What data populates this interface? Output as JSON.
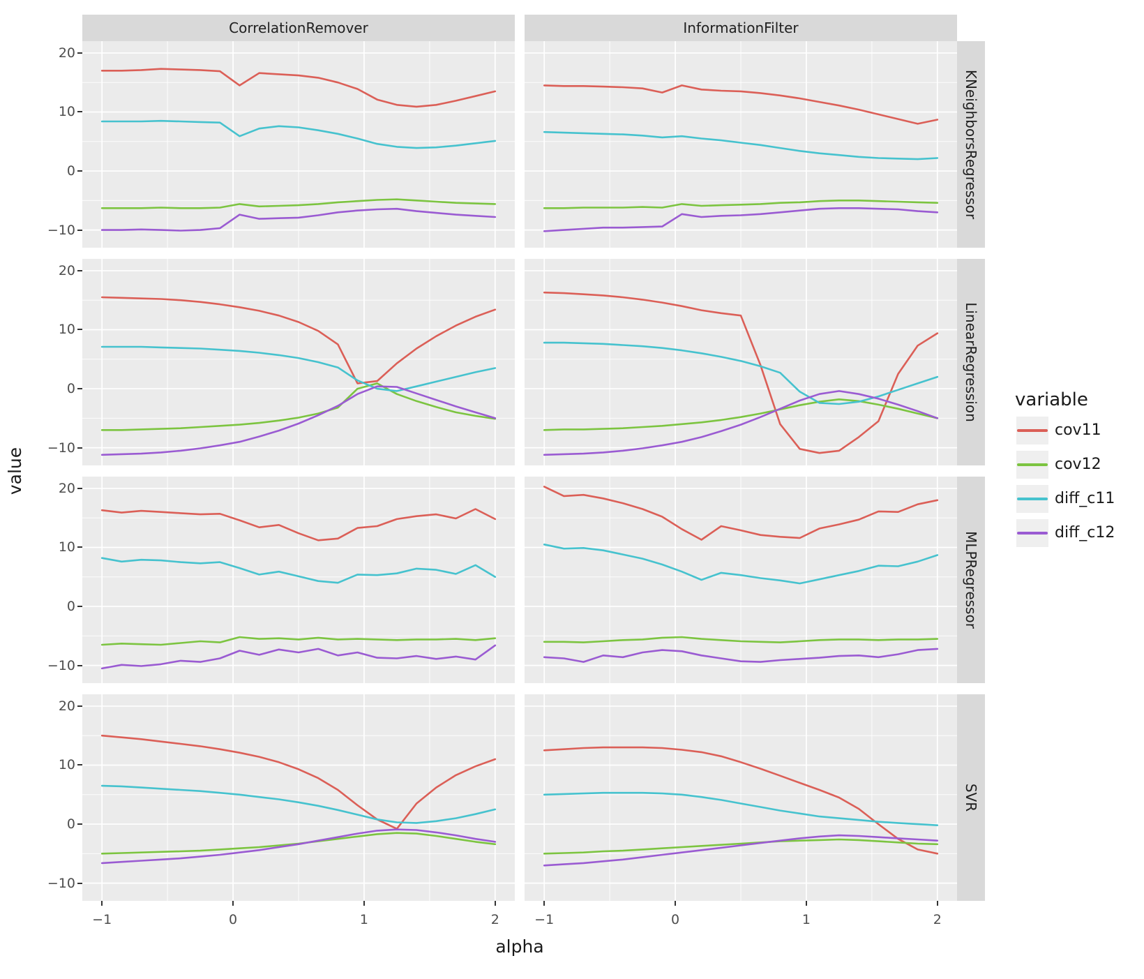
{
  "figure": {
    "background": "#FFFFFF",
    "panel_background": "#EBEBEB",
    "strip_background": "#D9D9D9",
    "grid_color": "#FFFFFF",
    "tick_color": "#333333",
    "tick_label_color": "#4D4D4D",
    "text_color": "#1A1A1A"
  },
  "chart_data": {
    "type": "line",
    "xlabel": "alpha",
    "ylabel": "value",
    "col_facets": [
      "CorrelationRemover",
      "InformationFilter"
    ],
    "row_facets": [
      "KNeighborsRegressor",
      "LinearRegression",
      "MLPRegressor",
      "SVR"
    ],
    "x_ticks": [
      "−1",
      "0",
      "1",
      "2"
    ],
    "x_tick_values": [
      -1,
      0,
      1,
      2
    ],
    "y_ticks": [
      "20",
      "10",
      "0",
      "−10"
    ],
    "y_tick_values": [
      20,
      10,
      0,
      -10
    ],
    "x_domain": [
      -1.15,
      2.15
    ],
    "y_domain": [
      -13,
      22
    ],
    "x_minor": [
      -0.5,
      0.5,
      1.5
    ],
    "y_minor": [
      15,
      5,
      -5
    ],
    "grid": true,
    "legend": {
      "title": "variable",
      "position": "right",
      "entries": [
        "cov11",
        "cov12",
        "diff_c11",
        "diff_c12"
      ]
    },
    "colors": {
      "cov11": "#DB5F57",
      "cov12": "#7CC440",
      "diff_c11": "#46C2CE",
      "diff_c12": "#9A5BD2"
    },
    "x": [
      -1.0,
      -0.85,
      -0.7,
      -0.55,
      -0.4,
      -0.25,
      -0.1,
      0.05,
      0.2,
      0.35,
      0.5,
      0.65,
      0.8,
      0.95,
      1.1,
      1.25,
      1.4,
      1.55,
      1.7,
      1.85,
      2.0
    ],
    "panels": [
      {
        "row": "KNeighborsRegressor",
        "col": "CorrelationRemover",
        "series": {
          "cov11": [
            17.0,
            17.0,
            17.1,
            17.3,
            17.2,
            17.1,
            16.9,
            14.5,
            16.6,
            16.4,
            16.2,
            15.8,
            15.0,
            13.9,
            12.1,
            11.2,
            10.9,
            11.2,
            11.9,
            12.7,
            13.5
          ],
          "cov12": [
            -6.3,
            -6.3,
            -6.3,
            -6.2,
            -6.3,
            -6.3,
            -6.2,
            -5.6,
            -6.0,
            -5.9,
            -5.8,
            -5.6,
            -5.3,
            -5.1,
            -4.9,
            -4.8,
            -5.0,
            -5.2,
            -5.4,
            -5.5,
            -5.6
          ],
          "diff_c11": [
            8.4,
            8.4,
            8.4,
            8.5,
            8.4,
            8.3,
            8.2,
            5.9,
            7.2,
            7.6,
            7.4,
            6.9,
            6.3,
            5.5,
            4.6,
            4.1,
            3.9,
            4.0,
            4.3,
            4.7,
            5.1
          ],
          "diff_c12": [
            -10.0,
            -10.0,
            -9.9,
            -10.0,
            -10.1,
            -10.0,
            -9.7,
            -7.4,
            -8.1,
            -8.0,
            -7.9,
            -7.5,
            -7.0,
            -6.7,
            -6.5,
            -6.4,
            -6.8,
            -7.1,
            -7.4,
            -7.6,
            -7.8
          ]
        }
      },
      {
        "row": "KNeighborsRegressor",
        "col": "InformationFilter",
        "series": {
          "cov11": [
            14.5,
            14.4,
            14.4,
            14.3,
            14.2,
            14.0,
            13.3,
            14.5,
            13.8,
            13.6,
            13.5,
            13.2,
            12.8,
            12.3,
            11.7,
            11.1,
            10.4,
            9.6,
            8.8,
            8.0,
            8.7
          ],
          "cov12": [
            -6.3,
            -6.3,
            -6.2,
            -6.2,
            -6.2,
            -6.1,
            -6.2,
            -5.6,
            -5.9,
            -5.8,
            -5.7,
            -5.6,
            -5.4,
            -5.3,
            -5.1,
            -5.0,
            -5.0,
            -5.1,
            -5.2,
            -5.3,
            -5.4
          ],
          "diff_c11": [
            6.6,
            6.5,
            6.4,
            6.3,
            6.2,
            6.0,
            5.7,
            5.9,
            5.5,
            5.2,
            4.8,
            4.4,
            3.9,
            3.4,
            3.0,
            2.7,
            2.4,
            2.2,
            2.1,
            2.0,
            2.2
          ],
          "diff_c12": [
            -10.2,
            -10.0,
            -9.8,
            -9.6,
            -9.6,
            -9.5,
            -9.4,
            -7.3,
            -7.8,
            -7.6,
            -7.5,
            -7.3,
            -7.0,
            -6.7,
            -6.4,
            -6.3,
            -6.3,
            -6.4,
            -6.5,
            -6.8,
            -7.0
          ]
        }
      },
      {
        "row": "LinearRegression",
        "col": "CorrelationRemover",
        "series": {
          "cov11": [
            15.5,
            15.4,
            15.3,
            15.2,
            15.0,
            14.7,
            14.3,
            13.8,
            13.2,
            12.4,
            11.3,
            9.8,
            7.5,
            0.9,
            1.3,
            4.3,
            6.8,
            8.9,
            10.7,
            12.2,
            13.4
          ],
          "cov12": [
            -7.0,
            -7.0,
            -6.9,
            -6.8,
            -6.7,
            -6.5,
            -6.3,
            -6.1,
            -5.8,
            -5.4,
            -4.9,
            -4.2,
            -3.2,
            0.0,
            0.9,
            -0.9,
            -2.1,
            -3.1,
            -4.0,
            -4.6,
            -5.1
          ],
          "diff_c11": [
            7.1,
            7.1,
            7.1,
            7.0,
            6.9,
            6.8,
            6.6,
            6.4,
            6.1,
            5.7,
            5.2,
            4.5,
            3.6,
            1.4,
            0.0,
            -0.4,
            0.4,
            1.2,
            2.0,
            2.8,
            3.5
          ],
          "diff_c12": [
            -11.2,
            -11.1,
            -11.0,
            -10.8,
            -10.5,
            -10.1,
            -9.6,
            -9.0,
            -8.1,
            -7.1,
            -5.9,
            -4.5,
            -2.9,
            -0.9,
            0.4,
            0.3,
            -0.8,
            -1.9,
            -3.0,
            -4.0,
            -5.0
          ]
        }
      },
      {
        "row": "LinearRegression",
        "col": "InformationFilter",
        "series": {
          "cov11": [
            16.3,
            16.2,
            16.0,
            15.8,
            15.5,
            15.1,
            14.6,
            14.0,
            13.3,
            12.8,
            12.4,
            4.0,
            -6.0,
            -10.2,
            -10.9,
            -10.5,
            -8.2,
            -5.5,
            2.5,
            7.3,
            9.4
          ],
          "cov12": [
            -7.0,
            -6.9,
            -6.9,
            -6.8,
            -6.7,
            -6.5,
            -6.3,
            -6.0,
            -5.7,
            -5.3,
            -4.8,
            -4.2,
            -3.5,
            -2.8,
            -2.2,
            -1.8,
            -2.1,
            -2.7,
            -3.4,
            -4.2,
            -5.0
          ],
          "diff_c11": [
            7.8,
            7.8,
            7.7,
            7.6,
            7.4,
            7.2,
            6.9,
            6.5,
            6.0,
            5.4,
            4.7,
            3.8,
            2.7,
            -0.5,
            -2.4,
            -2.6,
            -2.2,
            -1.3,
            -0.2,
            0.9,
            2.0
          ],
          "diff_c12": [
            -11.2,
            -11.1,
            -11.0,
            -10.8,
            -10.5,
            -10.1,
            -9.6,
            -9.0,
            -8.2,
            -7.2,
            -6.1,
            -4.8,
            -3.4,
            -2.0,
            -0.9,
            -0.4,
            -0.9,
            -1.7,
            -2.7,
            -3.8,
            -5.0
          ]
        }
      },
      {
        "row": "MLPRegressor",
        "col": "CorrelationRemover",
        "series": {
          "cov11": [
            16.3,
            15.9,
            16.2,
            16.0,
            15.8,
            15.6,
            15.7,
            14.6,
            13.4,
            13.8,
            12.4,
            11.2,
            11.5,
            13.3,
            13.6,
            14.8,
            15.3,
            15.6,
            14.9,
            16.5,
            14.8
          ],
          "cov12": [
            -6.5,
            -6.3,
            -6.4,
            -6.5,
            -6.2,
            -5.9,
            -6.1,
            -5.2,
            -5.5,
            -5.4,
            -5.6,
            -5.3,
            -5.6,
            -5.5,
            -5.6,
            -5.7,
            -5.6,
            -5.6,
            -5.5,
            -5.7,
            -5.4
          ],
          "diff_c11": [
            8.2,
            7.6,
            7.9,
            7.8,
            7.5,
            7.3,
            7.5,
            6.5,
            5.4,
            5.9,
            5.1,
            4.3,
            4.0,
            5.4,
            5.3,
            5.6,
            6.4,
            6.2,
            5.5,
            7.0,
            5.0
          ],
          "diff_c12": [
            -10.5,
            -9.9,
            -10.1,
            -9.8,
            -9.2,
            -9.4,
            -8.8,
            -7.5,
            -8.2,
            -7.3,
            -7.8,
            -7.2,
            -8.3,
            -7.8,
            -8.7,
            -8.8,
            -8.4,
            -8.9,
            -8.5,
            -9.0,
            -6.6
          ]
        }
      },
      {
        "row": "MLPRegressor",
        "col": "InformationFilter",
        "series": {
          "cov11": [
            20.3,
            18.7,
            18.9,
            18.3,
            17.5,
            16.5,
            15.2,
            13.1,
            11.3,
            13.6,
            12.9,
            12.1,
            11.8,
            11.6,
            13.2,
            13.9,
            14.7,
            16.1,
            16.0,
            17.3,
            18.0
          ],
          "cov12": [
            -6.0,
            -6.0,
            -6.1,
            -5.9,
            -5.7,
            -5.6,
            -5.3,
            -5.2,
            -5.5,
            -5.7,
            -5.9,
            -6.0,
            -6.1,
            -5.9,
            -5.7,
            -5.6,
            -5.6,
            -5.7,
            -5.6,
            -5.6,
            -5.5
          ],
          "diff_c11": [
            10.5,
            9.8,
            9.9,
            9.5,
            8.8,
            8.1,
            7.1,
            5.9,
            4.5,
            5.7,
            5.3,
            4.8,
            4.4,
            3.9,
            4.6,
            5.3,
            6.0,
            6.9,
            6.8,
            7.6,
            8.7
          ],
          "diff_c12": [
            -8.6,
            -8.8,
            -9.4,
            -8.3,
            -8.6,
            -7.8,
            -7.4,
            -7.6,
            -8.3,
            -8.8,
            -9.3,
            -9.4,
            -9.1,
            -8.9,
            -8.7,
            -8.4,
            -8.3,
            -8.6,
            -8.1,
            -7.4,
            -7.2
          ]
        }
      },
      {
        "row": "SVR",
        "col": "CorrelationRemover",
        "series": {
          "cov11": [
            15.0,
            14.7,
            14.4,
            14.0,
            13.6,
            13.2,
            12.7,
            12.1,
            11.4,
            10.5,
            9.3,
            7.8,
            5.8,
            3.2,
            0.8,
            -0.8,
            3.5,
            6.2,
            8.3,
            9.8,
            11.0
          ],
          "cov12": [
            -5.0,
            -4.9,
            -4.8,
            -4.7,
            -4.6,
            -4.5,
            -4.3,
            -4.1,
            -3.9,
            -3.6,
            -3.3,
            -2.9,
            -2.5,
            -2.1,
            -1.7,
            -1.5,
            -1.6,
            -2.0,
            -2.5,
            -3.0,
            -3.4
          ],
          "diff_c11": [
            6.5,
            6.4,
            6.2,
            6.0,
            5.8,
            5.6,
            5.3,
            5.0,
            4.6,
            4.2,
            3.7,
            3.1,
            2.4,
            1.6,
            0.8,
            0.3,
            0.2,
            0.5,
            1.0,
            1.7,
            2.5
          ],
          "diff_c12": [
            -6.6,
            -6.4,
            -6.2,
            -6.0,
            -5.8,
            -5.5,
            -5.2,
            -4.8,
            -4.4,
            -3.9,
            -3.4,
            -2.8,
            -2.2,
            -1.6,
            -1.1,
            -0.9,
            -1.0,
            -1.4,
            -1.9,
            -2.5,
            -3.0
          ]
        }
      },
      {
        "row": "SVR",
        "col": "InformationFilter",
        "series": {
          "cov11": [
            12.5,
            12.7,
            12.9,
            13.0,
            13.0,
            13.0,
            12.9,
            12.6,
            12.2,
            11.5,
            10.5,
            9.4,
            8.2,
            7.0,
            5.8,
            4.5,
            2.6,
            0.0,
            -2.5,
            -4.3,
            -5.0
          ],
          "cov12": [
            -5.0,
            -4.9,
            -4.8,
            -4.6,
            -4.5,
            -4.3,
            -4.1,
            -3.9,
            -3.7,
            -3.5,
            -3.3,
            -3.1,
            -2.9,
            -2.8,
            -2.7,
            -2.6,
            -2.7,
            -2.9,
            -3.1,
            -3.3,
            -3.4
          ],
          "diff_c11": [
            5.0,
            5.1,
            5.2,
            5.3,
            5.3,
            5.3,
            5.2,
            5.0,
            4.6,
            4.1,
            3.5,
            2.9,
            2.3,
            1.8,
            1.3,
            1.0,
            0.7,
            0.4,
            0.2,
            0.0,
            -0.2
          ],
          "diff_c12": [
            -7.0,
            -6.8,
            -6.6,
            -6.3,
            -6.0,
            -5.6,
            -5.2,
            -4.8,
            -4.4,
            -4.0,
            -3.6,
            -3.2,
            -2.8,
            -2.4,
            -2.1,
            -1.9,
            -2.0,
            -2.2,
            -2.4,
            -2.6,
            -2.8
          ]
        }
      }
    ]
  }
}
